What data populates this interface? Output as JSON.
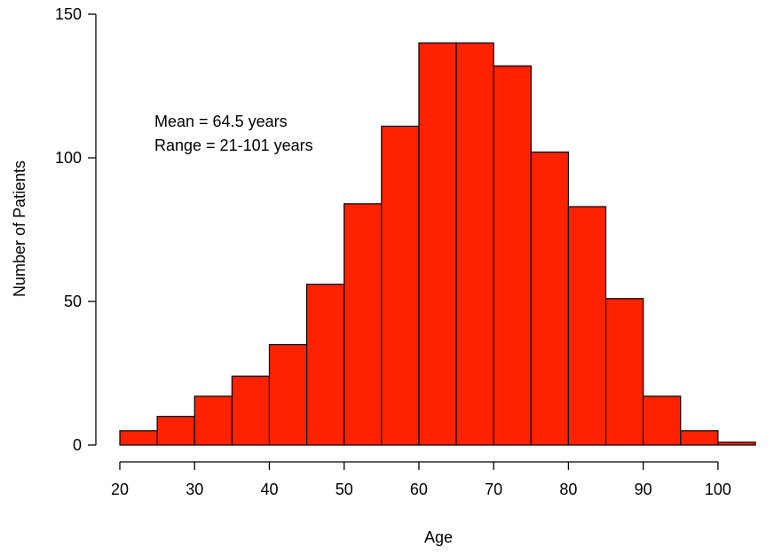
{
  "chart_data": {
    "type": "bar",
    "subtype": "histogram",
    "bin_width": 5,
    "bins": [
      {
        "start": 20,
        "end": 25,
        "count": 5
      },
      {
        "start": 25,
        "end": 30,
        "count": 10
      },
      {
        "start": 30,
        "end": 35,
        "count": 17
      },
      {
        "start": 35,
        "end": 40,
        "count": 24
      },
      {
        "start": 40,
        "end": 45,
        "count": 35
      },
      {
        "start": 45,
        "end": 50,
        "count": 56
      },
      {
        "start": 50,
        "end": 55,
        "count": 84
      },
      {
        "start": 55,
        "end": 60,
        "count": 111
      },
      {
        "start": 60,
        "end": 65,
        "count": 140
      },
      {
        "start": 65,
        "end": 70,
        "count": 140
      },
      {
        "start": 70,
        "end": 75,
        "count": 132
      },
      {
        "start": 75,
        "end": 80,
        "count": 102
      },
      {
        "start": 80,
        "end": 85,
        "count": 83
      },
      {
        "start": 85,
        "end": 90,
        "count": 51
      },
      {
        "start": 90,
        "end": 95,
        "count": 17
      },
      {
        "start": 95,
        "end": 100,
        "count": 5
      },
      {
        "start": 100,
        "end": 105,
        "count": 1
      }
    ],
    "title": "",
    "xlabel": "Age",
    "ylabel": "Number of Patients",
    "xlim": [
      20,
      105
    ],
    "ylim": [
      0,
      150
    ],
    "xticks": [
      20,
      30,
      40,
      50,
      60,
      70,
      80,
      90,
      100
    ],
    "yticks": [
      0,
      50,
      100,
      150
    ],
    "annotations": [
      "Mean = 64.5 years",
      "Range = 21-101 years"
    ],
    "grid": false,
    "legend": "none",
    "colors": {
      "bar_fill": "#ff2200",
      "bar_edge": "#000000",
      "axis": "#000000",
      "background": "#ffffff"
    }
  }
}
